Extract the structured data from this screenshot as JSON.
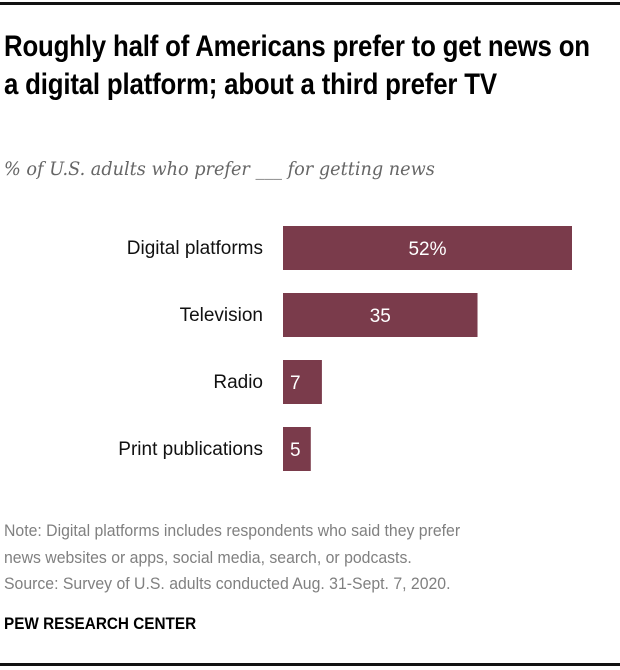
{
  "title": "Roughly half of Americans prefer to get news on a digital platform; about a third prefer TV",
  "subtitle": "% of U.S. adults who prefer ___ for getting news",
  "chart_data": {
    "type": "bar",
    "orientation": "horizontal",
    "categories": [
      "Digital platforms",
      "Television",
      "Radio",
      "Print publications"
    ],
    "values": [
      52,
      35,
      7,
      5
    ],
    "data_labels": [
      "52%",
      "35",
      "7",
      "5"
    ],
    "xlim": [
      0,
      52
    ],
    "grid": false,
    "bar_color": "#7a3b4b"
  },
  "note_lines": [
    "Note: Digital platforms includes respondents who said they prefer",
    "news websites or apps, social media, search, or podcasts.",
    "Source: Survey of U.S. adults conducted Aug. 31-Sept. 7, 2020."
  ],
  "brand": "PEW RESEARCH CENTER"
}
